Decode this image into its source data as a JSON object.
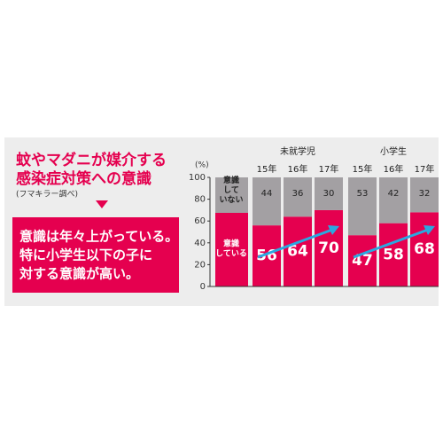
{
  "title_lines": [
    "蚊やマダニが媒介する",
    "感染症対策への意識"
  ],
  "source": "(フマキラー調べ)",
  "message_lines": [
    "意識は年々上がっている。",
    "特に小学生以下の子に",
    "対する意識が高い。"
  ],
  "chart_data": {
    "type": "stacked-bar",
    "y_label": "(%)",
    "groups": [
      {
        "name": "未就学児",
        "categories": [
          "15年",
          "16年",
          "17年"
        ]
      },
      {
        "name": "小学生",
        "categories": [
          "15年",
          "16年",
          "17年"
        ]
      }
    ],
    "series": [
      {
        "name": "意識\nしている",
        "color": "#e5004f",
        "values": [
          56,
          64,
          70,
          47,
          58,
          68
        ]
      },
      {
        "name": "意識\nして\nいない",
        "color": "#a3a0a3",
        "values": [
          44,
          36,
          30,
          53,
          42,
          32
        ]
      }
    ],
    "ylim": [
      0,
      100
    ],
    "yticks": [
      0,
      20,
      40,
      60,
      80,
      100
    ]
  }
}
